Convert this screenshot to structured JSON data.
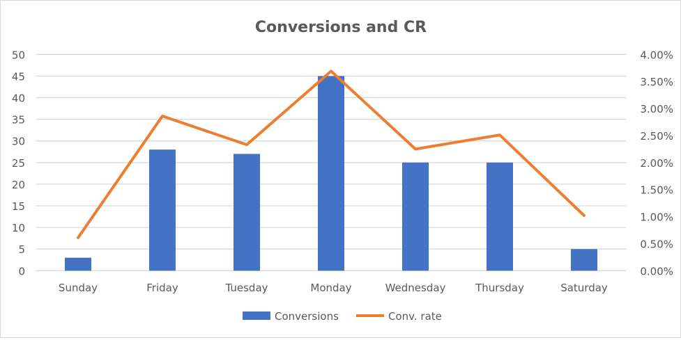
{
  "chart_data": {
    "type": "bar+line",
    "title": "Conversions and CR",
    "categories": [
      "Sunday",
      "Friday",
      "Tuesday",
      "Monday",
      "Wednesday",
      "Thursday",
      "Saturday"
    ],
    "series": [
      {
        "name": "Conversions",
        "type": "bar",
        "axis": "left",
        "color": "#4472C4",
        "values": [
          3,
          28,
          27,
          45,
          25,
          25,
          5
        ]
      },
      {
        "name": "Conv. rate",
        "type": "line",
        "axis": "right",
        "color": "#ED7D31",
        "values": [
          0.0061,
          0.0286,
          0.0233,
          0.0369,
          0.0225,
          0.0251,
          0.0102
        ]
      }
    ],
    "y_left": {
      "min": 0,
      "max": 50,
      "step": 5,
      "tick_labels": [
        "0",
        "5",
        "10",
        "15",
        "20",
        "25",
        "30",
        "35",
        "40",
        "45",
        "50"
      ]
    },
    "y_right": {
      "min": 0,
      "max": 0.04,
      "step": 0.005,
      "tick_labels": [
        "0.00%",
        "0.50%",
        "1.00%",
        "1.50%",
        "2.00%",
        "2.50%",
        "3.00%",
        "3.50%",
        "4.00%"
      ]
    },
    "grid": true,
    "legend": "bottom"
  }
}
